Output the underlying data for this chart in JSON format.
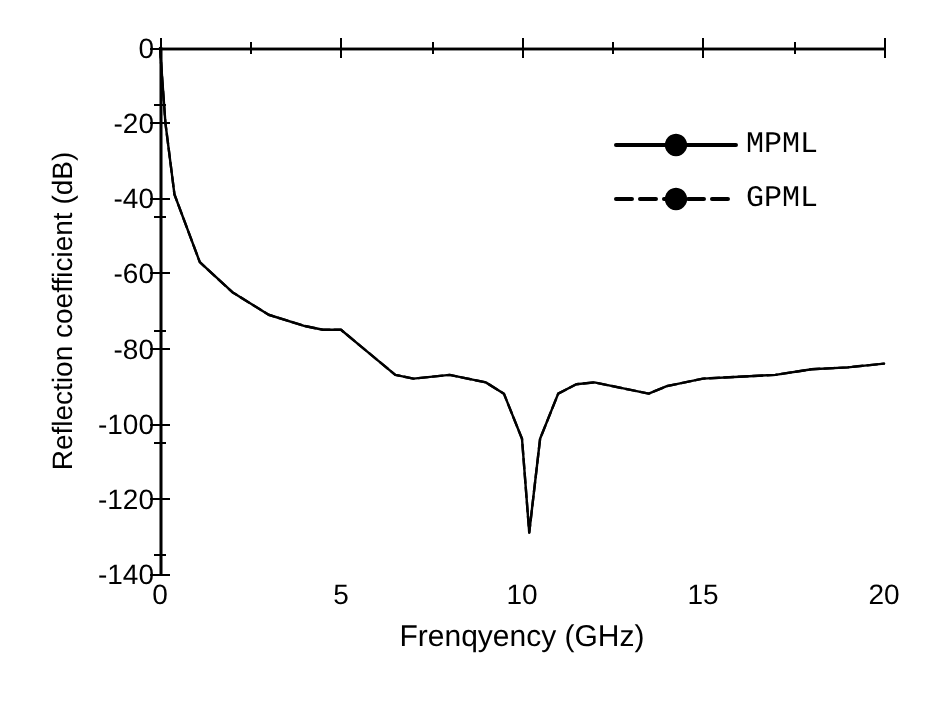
{
  "chart_data": {
    "type": "line",
    "xlabel": "Frenqyency (GHz)",
    "ylabel": "Reflection coefficient (dB)",
    "xlim": [
      0,
      20
    ],
    "xticks": [
      0,
      5,
      10,
      15,
      20
    ],
    "ylim": [
      -140,
      0
    ],
    "yticks": [
      -140,
      -120,
      -100,
      -80,
      -60,
      -40,
      -20,
      0
    ],
    "x": [
      0,
      0.15,
      0.4,
      1.1,
      2,
      3,
      4,
      4.5,
      5,
      5.5,
      6,
      6.5,
      7,
      8,
      9,
      9.5,
      10,
      10.2,
      10.5,
      11,
      11.5,
      12,
      13,
      13.5,
      14,
      15,
      16,
      17,
      18,
      19,
      20
    ],
    "series": [
      {
        "name": "MPML",
        "color": "#000000",
        "line_style": "solid",
        "values": [
          0,
          -20,
          -39,
          -57,
          -65,
          -71,
          -74,
          -75,
          -75,
          -79,
          -83,
          -87,
          -88,
          -87,
          -89,
          -92,
          -104,
          -129,
          -104,
          -92,
          -89.5,
          -89,
          -91,
          -92,
          -90,
          -88,
          -87.5,
          -87,
          -85.5,
          -85,
          -84
        ]
      },
      {
        "name": "GPML",
        "color": "#000000",
        "line_style": "dashed",
        "values": [
          0,
          -20,
          -39,
          -57,
          -65,
          -71,
          -74,
          -75,
          -75,
          -79,
          -83,
          -87,
          -88,
          -87,
          -89,
          -92,
          -104,
          -129,
          -104,
          -92,
          -89.5,
          -89,
          -91,
          -92,
          -90,
          -88,
          -87.5,
          -87,
          -85.5,
          -85,
          -84
        ]
      }
    ],
    "legend": "top right",
    "grid": false,
    "marker": "none"
  }
}
